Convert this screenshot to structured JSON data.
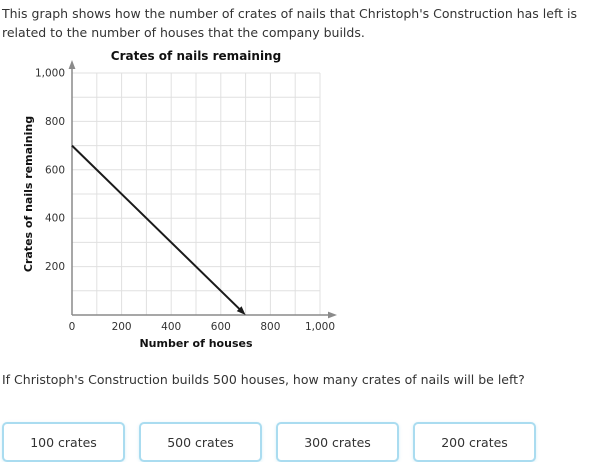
{
  "description": "This graph shows how the number of crates of nails that Christoph's Construction has left is related to the number of houses that the company builds.",
  "question": "If Christoph's Construction builds 500 houses, how many crates of nails will be left?",
  "answers": [
    "100 crates",
    "500 crates",
    "300 crates",
    "200 crates"
  ],
  "chart_data": {
    "type": "line",
    "title": "Crates of nails remaining",
    "xlabel": "Number of houses",
    "ylabel": "Crates of nails remaining",
    "series": [
      {
        "name": "crates-remaining-line",
        "points": [
          [
            0,
            700
          ],
          [
            700,
            0
          ]
        ],
        "arrow_end": true
      }
    ],
    "xlim": [
      0,
      1000
    ],
    "ylim": [
      0,
      1000
    ],
    "xticks": [
      0,
      200,
      400,
      600,
      800,
      1000
    ],
    "yticks": [
      200,
      400,
      600,
      800,
      1000
    ],
    "grid": true,
    "grid_interval": 100,
    "legend": "none",
    "colors": {
      "line": "#1a1a1a",
      "grid": "#e0e0e0",
      "axis": "#8a8a8a",
      "tick_text": "#333333",
      "label_text": "#111111"
    }
  },
  "ui_colors": {
    "answer_border": "#aadcf0",
    "body_text": "#333333",
    "background": "#ffffff"
  }
}
